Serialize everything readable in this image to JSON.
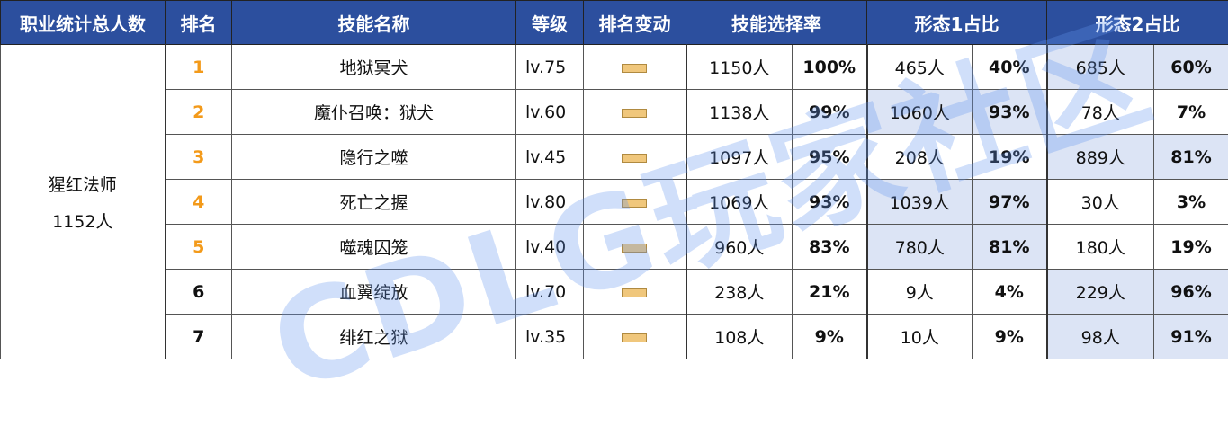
{
  "headers": {
    "total": "职业统计总人数",
    "rank": "排名",
    "skill": "技能名称",
    "level": "等级",
    "change": "排名变动",
    "rate": "技能选择率",
    "form1": "形态1占比",
    "form2": "形态2占比"
  },
  "class": {
    "name": "猩红法师",
    "count": "1152人"
  },
  "watermark": "CDLG玩家社区",
  "colors": {
    "header": "#2c4f9e",
    "highlight": "#dce4f5",
    "rank_top": "#f39a1a",
    "change_bar": "#f0c77c"
  },
  "rows": [
    {
      "rank": "1",
      "skill": "地狱冥犬",
      "level": "lv.75",
      "change": "none",
      "count": "1150人",
      "pct": "100%",
      "f1c": "465人",
      "f1p": "40%",
      "f2c": "685人",
      "f2p": "60%",
      "hl": 2
    },
    {
      "rank": "2",
      "skill": "魔仆召唤：狱犬",
      "level": "lv.60",
      "change": "none",
      "count": "1138人",
      "pct": "99%",
      "f1c": "1060人",
      "f1p": "93%",
      "f2c": "78人",
      "f2p": "7%",
      "hl": 1
    },
    {
      "rank": "3",
      "skill": "隐行之噬",
      "level": "lv.45",
      "change": "none",
      "count": "1097人",
      "pct": "95%",
      "f1c": "208人",
      "f1p": "19%",
      "f2c": "889人",
      "f2p": "81%",
      "hl": 2
    },
    {
      "rank": "4",
      "skill": "死亡之握",
      "level": "lv.80",
      "change": "none",
      "count": "1069人",
      "pct": "93%",
      "f1c": "1039人",
      "f1p": "97%",
      "f2c": "30人",
      "f2p": "3%",
      "hl": 1
    },
    {
      "rank": "5",
      "skill": "噬魂囚笼",
      "level": "lv.40",
      "change": "none",
      "count": "960人",
      "pct": "83%",
      "f1c": "780人",
      "f1p": "81%",
      "f2c": "180人",
      "f2p": "19%",
      "hl": 1
    },
    {
      "rank": "6",
      "skill": "血翼绽放",
      "level": "lv.70",
      "change": "none",
      "count": "238人",
      "pct": "21%",
      "f1c": "9人",
      "f1p": "4%",
      "f2c": "229人",
      "f2p": "96%",
      "hl": 2
    },
    {
      "rank": "7",
      "skill": "绯红之狱",
      "level": "lv.35",
      "change": "none",
      "count": "108人",
      "pct": "9%",
      "f1c": "10人",
      "f1p": "9%",
      "f2c": "98人",
      "f2p": "91%",
      "hl": 2
    }
  ]
}
